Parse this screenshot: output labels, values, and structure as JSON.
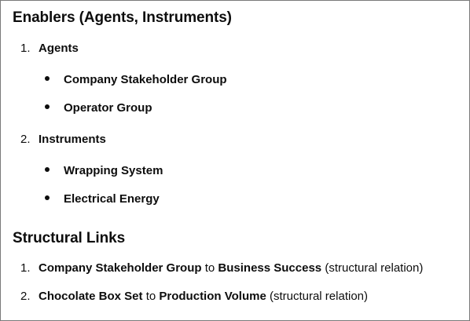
{
  "sections": [
    {
      "title": "Enablers (Agents, Instruments)",
      "items": [
        {
          "number": "1.",
          "label": "Agents",
          "sub_items": [
            "Company Stakeholder Group",
            "Operator Group"
          ]
        },
        {
          "number": "2.",
          "label": "Instruments",
          "sub_items": [
            "Wrapping System",
            "Electrical Energy"
          ]
        }
      ]
    },
    {
      "title": "Structural Links",
      "links": [
        {
          "number": "1.",
          "source": "Company Stakeholder Group",
          "connector": " to ",
          "target": "Business Success",
          "relation": " (structural relation)"
        },
        {
          "number": "2.",
          "source": "Chocolate Box Set",
          "connector": " to ",
          "target": "Production Volume",
          "relation": " (structural relation)"
        }
      ]
    }
  ]
}
